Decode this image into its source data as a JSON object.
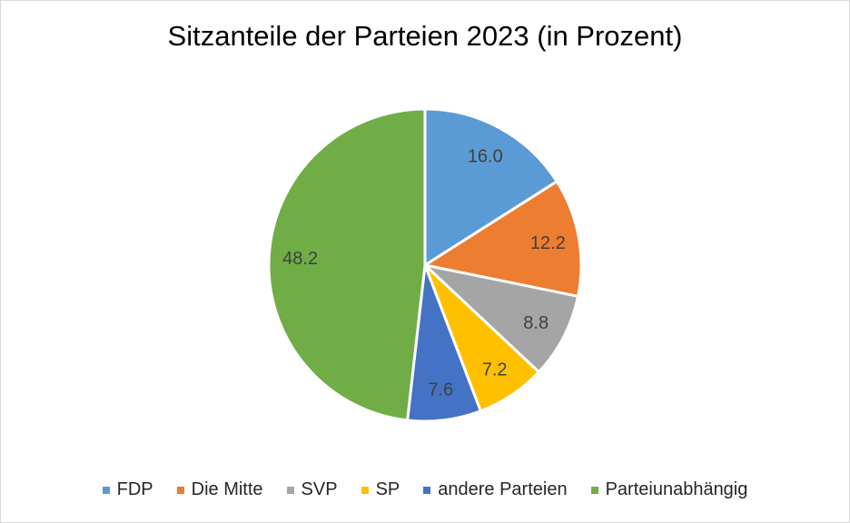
{
  "chart_data": {
    "type": "pie",
    "title": "Sitzanteile der Parteien 2023 (in Prozent)",
    "categories": [
      "FDP",
      "Die Mitte",
      "SVP",
      "SP",
      "andere Parteien",
      "Parteiunabhängig"
    ],
    "values": [
      16.0,
      12.2,
      8.8,
      7.2,
      7.6,
      48.2
    ],
    "labels": [
      "16.0",
      "12.2",
      "8.8",
      "7.2",
      "7.6",
      "48.2"
    ],
    "colors": [
      "#5B9BD5",
      "#ED7D31",
      "#A5A5A5",
      "#FFC000",
      "#4472C4",
      "#70AD47"
    ],
    "start_angle": "12 o'clock",
    "direction": "clockwise",
    "legend_position": "bottom"
  }
}
